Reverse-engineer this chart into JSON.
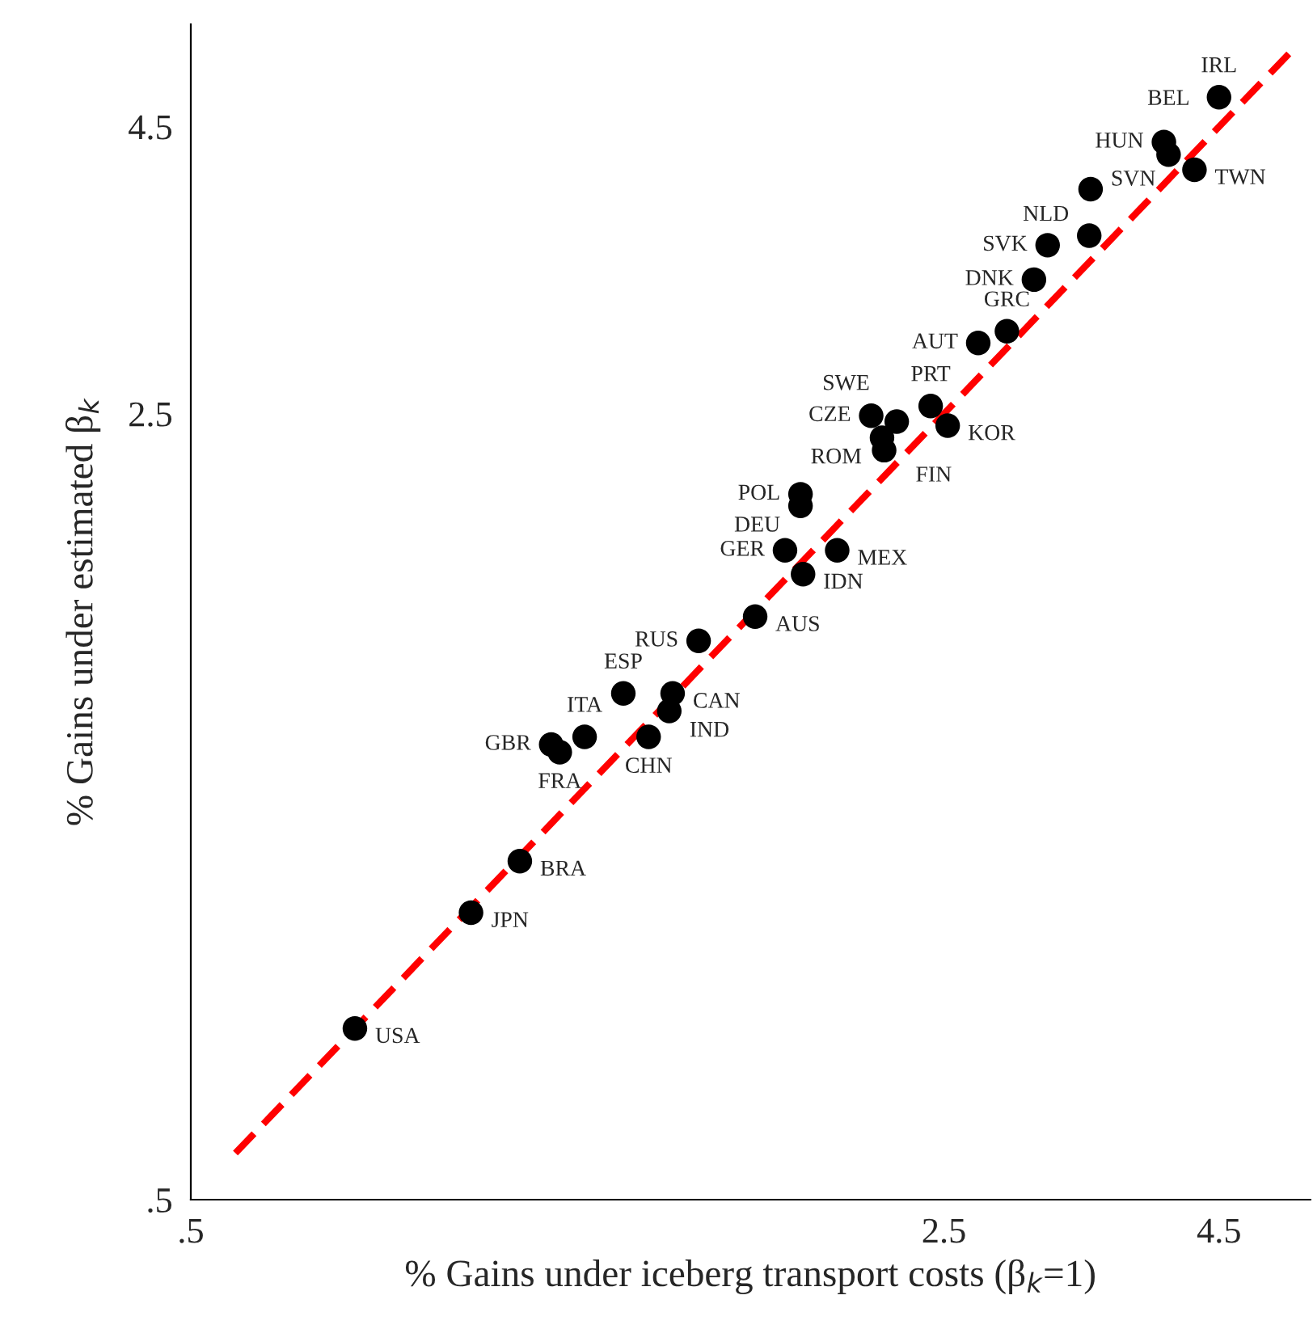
{
  "chart_data": {
    "type": "scatter",
    "xlabel": "% Gains under iceberg transport costs (β$_{k}$=1)",
    "ylabel": "% Gains under estimated β$_{k}$",
    "log": "xy",
    "xlim": [
      0.5,
      5.47
    ],
    "ylim": [
      0.5,
      5.55
    ],
    "xticks": [
      {
        "value": 0.5,
        "label": ".5"
      },
      2.5,
      4.5
    ],
    "yticks": [
      {
        "value": 0.5,
        "label": ".5"
      },
      2.5,
      4.5
    ],
    "grid": false,
    "legend": false,
    "marker": "circle",
    "series": [
      {
        "color": "#000000",
        "x": [
          0.71,
          0.91,
          1.01,
          1.08,
          1.1,
          1.16,
          1.26,
          1.4,
          1.39,
          1.33,
          1.48,
          1.67,
          1.78,
          1.99,
          1.85,
          1.84,
          1.84,
          2.14,
          2.26,
          2.19,
          2.2,
          2.43,
          2.52,
          2.69,
          2.86,
          3.03,
          3.12,
          3.41,
          3.42,
          4.0,
          4.04,
          4.27,
          4.5
        ],
        "values": [
          0.71,
          0.9,
          1.0,
          1.27,
          1.25,
          1.29,
          1.41,
          1.41,
          1.36,
          1.29,
          1.57,
          1.65,
          1.89,
          1.89,
          1.8,
          2.12,
          2.07,
          2.49,
          2.46,
          2.38,
          2.32,
          2.54,
          2.44,
          2.89,
          2.96,
          3.29,
          3.53,
          3.6,
          3.96,
          4.36,
          4.25,
          4.12,
          4.78
        ],
        "value_labels": [
          "USA",
          "JPN",
          "BRA",
          "GBR",
          "FRA",
          "ITA",
          "ESP",
          "CAN",
          "IND",
          "CHN",
          "RUS",
          "AUS",
          "GER",
          "MEX",
          "IDN",
          "POL",
          "DEU",
          "CZE",
          "SWE",
          "ROM",
          "FIN",
          "PRT",
          "KOR",
          "AUT",
          "GRC",
          "DNK",
          "SVK",
          "NLD",
          "SVN",
          "HUN",
          "BEL",
          "TWN",
          "IRL"
        ]
      },
      {
        "type": "line",
        "color": "#ff0000",
        "line_style": "dashed",
        "marker": "none",
        "x": [
          0.55,
          5.3
        ],
        "values": [
          0.55,
          5.3
        ]
      }
    ]
  }
}
